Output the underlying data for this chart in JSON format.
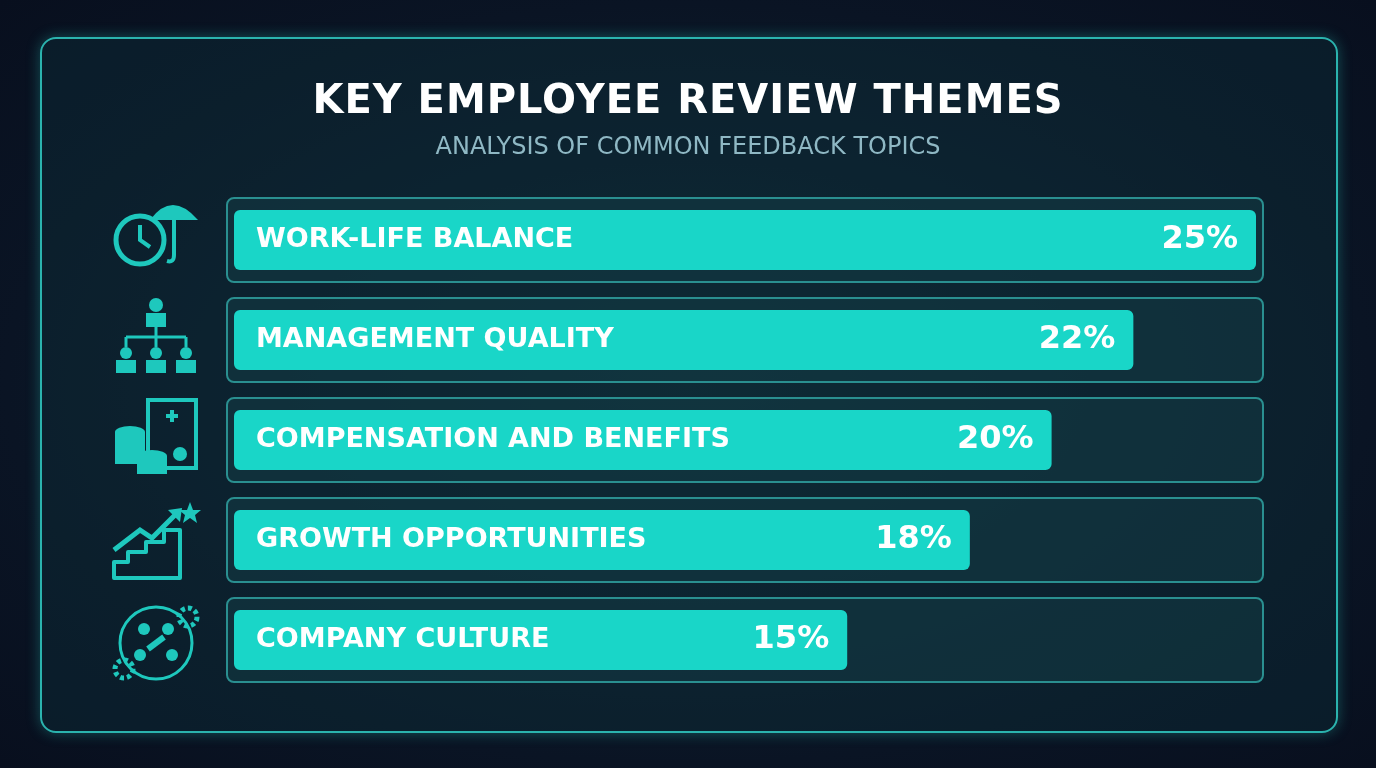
{
  "chart_data": {
    "type": "bar",
    "orientation": "horizontal",
    "title": "KEY EMPLOYEE REVIEW THEMES",
    "subtitle": "ANALYSIS OF COMMON FEEDBACK TOPICS",
    "categories": [
      "WORK-LIFE BALANCE",
      "MANAGEMENT QUALITY",
      "COMPENSATION AND BENEFITS",
      "GROWTH OPPORTUNITIES",
      "COMPANY CULTURE"
    ],
    "values": [
      25,
      22,
      20,
      18,
      15
    ],
    "value_labels": [
      "25%",
      "22%",
      "20%",
      "18%",
      "15%"
    ],
    "color": "#19d6c8"
  }
}
